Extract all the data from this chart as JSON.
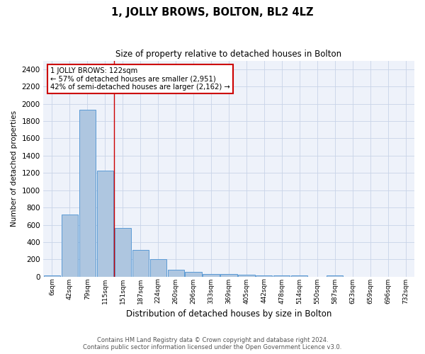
{
  "title": "1, JOLLY BROWS, BOLTON, BL2 4LZ",
  "subtitle": "Size of property relative to detached houses in Bolton",
  "xlabel": "Distribution of detached houses by size in Bolton",
  "ylabel": "Number of detached properties",
  "footer_line1": "Contains HM Land Registry data © Crown copyright and database right 2024.",
  "footer_line2": "Contains public sector information licensed under the Open Government Licence v3.0.",
  "categories": [
    "6sqm",
    "42sqm",
    "79sqm",
    "115sqm",
    "151sqm",
    "187sqm",
    "224sqm",
    "260sqm",
    "296sqm",
    "333sqm",
    "369sqm",
    "405sqm",
    "442sqm",
    "478sqm",
    "514sqm",
    "550sqm",
    "587sqm",
    "623sqm",
    "659sqm",
    "696sqm",
    "732sqm"
  ],
  "values": [
    15,
    720,
    1930,
    1225,
    565,
    310,
    200,
    80,
    55,
    35,
    35,
    20,
    15,
    15,
    15,
    0,
    15,
    0,
    0,
    0,
    0
  ],
  "bar_color": "#aec6e0",
  "bar_edge_color": "#5b9bd5",
  "bg_color": "#eef2fa",
  "grid_color": "#c8d4e8",
  "annotation_text": "1 JOLLY BROWS: 122sqm\n← 57% of detached houses are smaller (2,951)\n42% of semi-detached houses are larger (2,162) →",
  "annotation_box_facecolor": "#ffffff",
  "annotation_box_edgecolor": "#cc0000",
  "red_line_index": 3,
  "ylim": [
    0,
    2500
  ],
  "yticks": [
    0,
    200,
    400,
    600,
    800,
    1000,
    1200,
    1400,
    1600,
    1800,
    2000,
    2200,
    2400
  ]
}
